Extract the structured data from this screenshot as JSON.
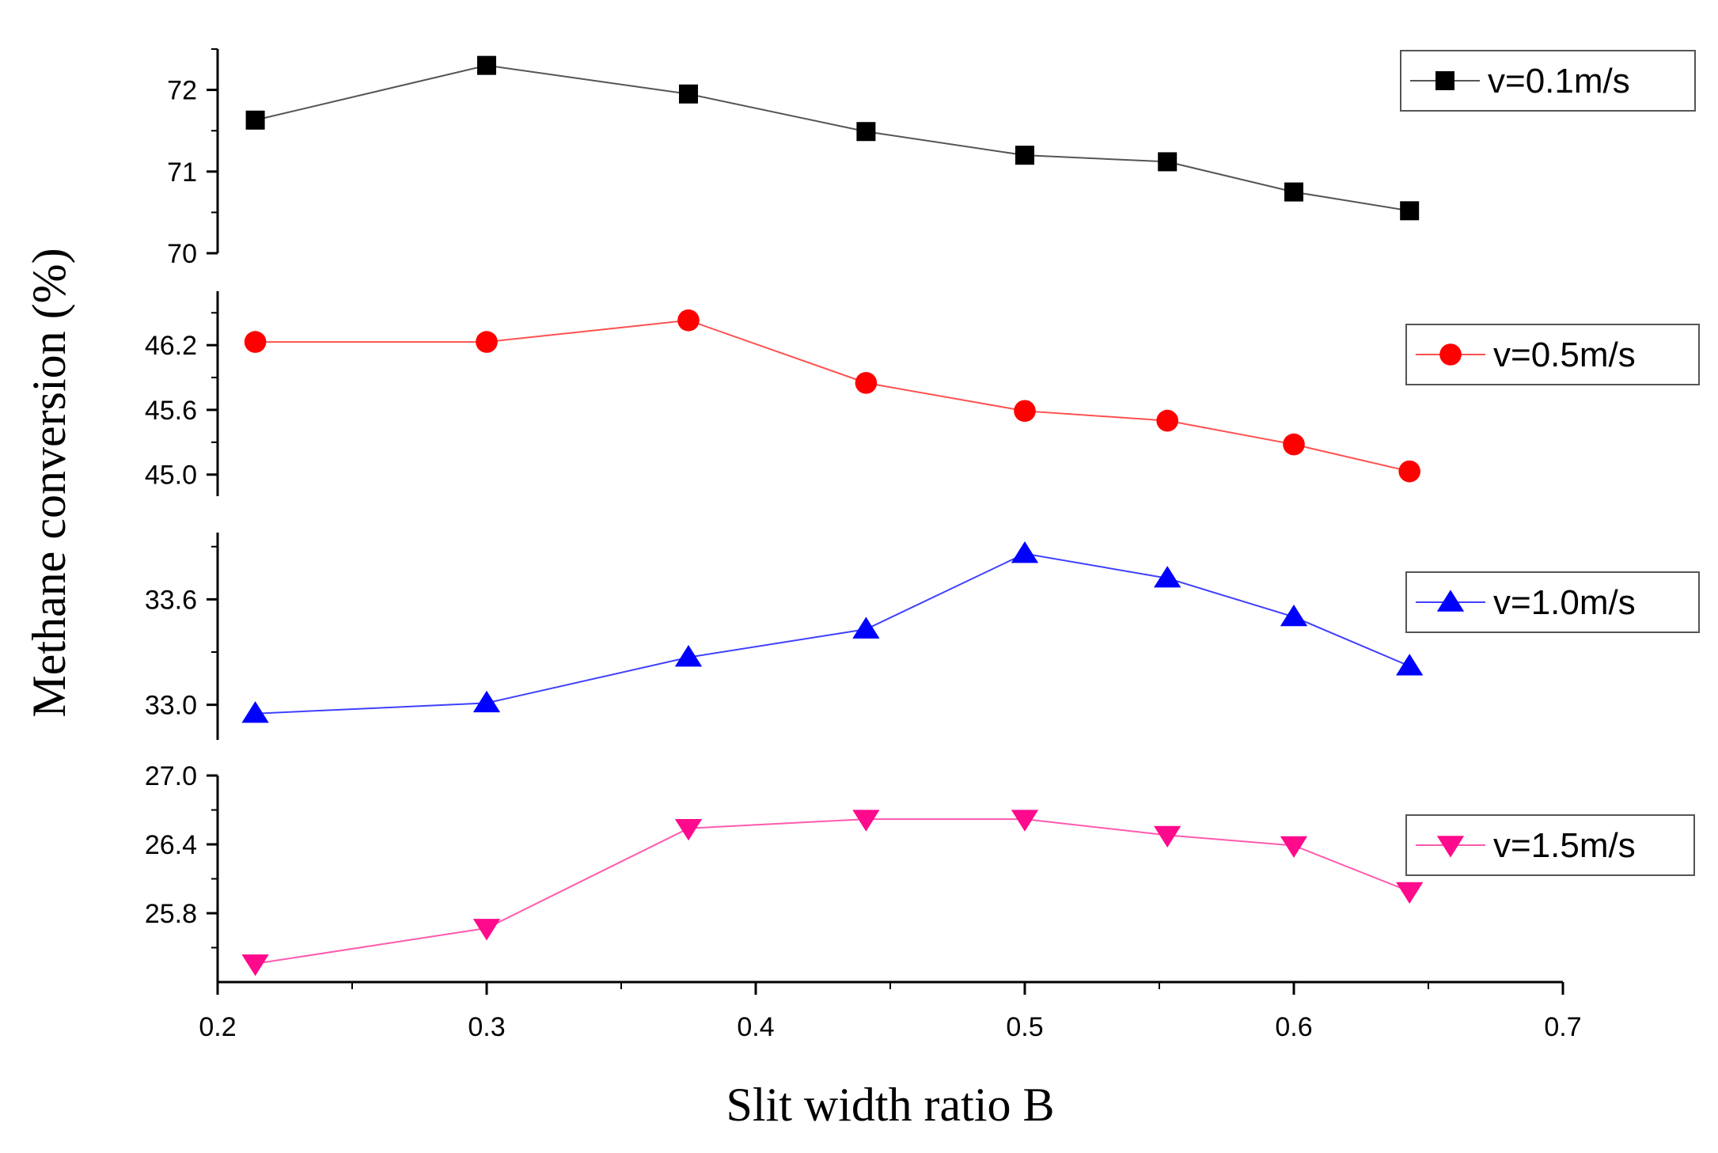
{
  "chart_data": {
    "type": "line",
    "layout": "stacked-panels",
    "xlabel": "Slit width ratio B",
    "ylabel": "Methane conversion (%)",
    "x": [
      0.214,
      0.3,
      0.375,
      0.441,
      0.5,
      0.553,
      0.6,
      0.643
    ],
    "xlim": [
      0.2,
      0.7
    ],
    "xticks": [
      0.2,
      0.3,
      0.4,
      0.5,
      0.6,
      0.7
    ],
    "xtick_labels": [
      "0.2",
      "0.3",
      "0.4",
      "0.5",
      "0.6",
      "0.7"
    ],
    "series": [
      {
        "name": "v=0.1m/s",
        "marker": "square",
        "color": "#000000",
        "line_color": "#555555",
        "values": [
          71.63,
          72.3,
          71.95,
          71.49,
          71.2,
          71.12,
          70.75,
          70.52
        ],
        "ylim": [
          70,
          72.5
        ],
        "yticks": [
          70,
          71,
          72
        ],
        "ytick_labels": [
          "70",
          "71",
          "72"
        ]
      },
      {
        "name": "v=0.5m/s",
        "marker": "circle",
        "color": "#ff0000",
        "line_color": "#ff5050",
        "values": [
          46.23,
          46.23,
          46.43,
          45.85,
          45.59,
          45.5,
          45.28,
          45.03
        ],
        "ylim": [
          44.8,
          46.7
        ],
        "yticks": [
          45.0,
          45.6,
          46.2
        ],
        "ytick_labels": [
          "45.0",
          "45.6",
          "46.2"
        ]
      },
      {
        "name": "v=1.0m/s",
        "marker": "triangle-up",
        "color": "#0000ff",
        "line_color": "#4040ff",
        "values": [
          32.95,
          33.01,
          33.27,
          33.43,
          33.86,
          33.72,
          33.5,
          33.22
        ],
        "ylim": [
          32.8,
          33.98
        ],
        "yticks": [
          33.0,
          33.6
        ],
        "ytick_labels": [
          "33.0",
          "33.6"
        ]
      },
      {
        "name": "v=1.5m/s",
        "marker": "triangle-down",
        "color": "#ff0a8c",
        "line_color": "#ff5aae",
        "values": [
          25.36,
          25.67,
          26.54,
          26.62,
          26.62,
          26.48,
          26.39,
          25.99
        ],
        "ylim": [
          25.2,
          27.0
        ],
        "yticks": [
          25.8,
          26.4,
          27.0
        ],
        "ytick_labels": [
          "25.8",
          "26.4",
          "27.0"
        ]
      }
    ]
  }
}
